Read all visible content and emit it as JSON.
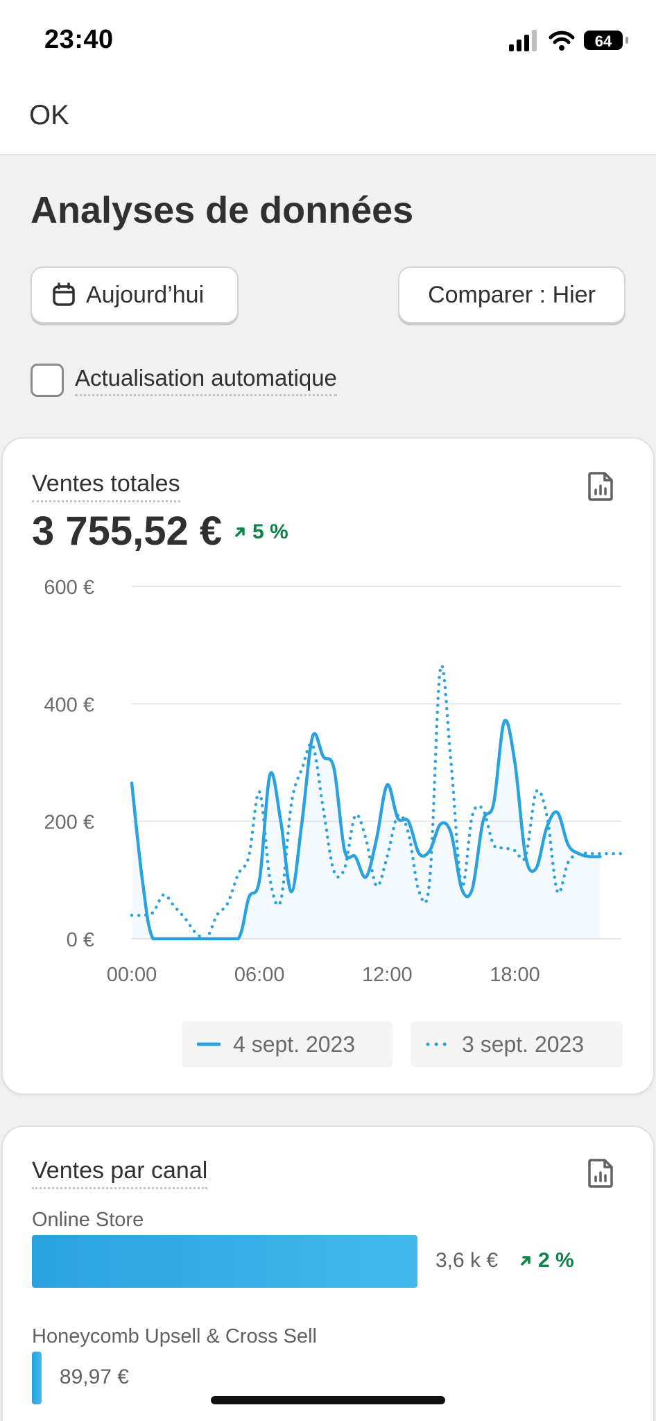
{
  "status_bar": {
    "time": "23:40",
    "battery": "64"
  },
  "nav": {
    "ok_label": "OK"
  },
  "page": {
    "title": "Analyses de données"
  },
  "controls": {
    "date_label": "Aujourd’hui",
    "compare_label": "Comparer : Hier",
    "auto_refresh_label": "Actualisation automatique",
    "auto_refresh_checked": false
  },
  "sales_card": {
    "title": "Ventes totales",
    "total": "3 755,52 €",
    "growth": "5 %",
    "accent_color": "#2aa2df",
    "growth_color": "#0c8346",
    "legend": [
      "4 sept. 2023",
      "3 sept. 2023"
    ]
  },
  "chart_data": {
    "type": "line",
    "xlabel": "",
    "ylabel": "",
    "x_ticks": [
      "00:00",
      "06:00",
      "12:00",
      "18:00"
    ],
    "y_ticks": [
      "0 €",
      "200 €",
      "400 €",
      "600 €"
    ],
    "ylim": [
      0,
      600
    ],
    "xlim": [
      0,
      23
    ],
    "grid": true,
    "legend_position": "bottom",
    "series": [
      {
        "name": "4 sept. 2023",
        "style": "solid",
        "x": [
          0,
          0.5,
          1,
          2,
          3,
          4,
          5,
          5.5,
          6,
          6.5,
          7,
          7.5,
          8,
          8.5,
          9,
          9.5,
          10,
          10.5,
          11,
          11.5,
          12,
          12.5,
          13,
          13.5,
          14,
          14.5,
          15,
          15.5,
          16,
          16.5,
          17,
          17.5,
          18,
          18.5,
          19,
          19.5,
          20,
          20.5,
          21,
          21.5,
          22
        ],
        "values": [
          265,
          100,
          0,
          0,
          0,
          0,
          0,
          70,
          100,
          280,
          200,
          80,
          200,
          345,
          310,
          290,
          150,
          140,
          105,
          170,
          262,
          205,
          200,
          145,
          150,
          195,
          180,
          85,
          85,
          200,
          230,
          370,
          300,
          140,
          120,
          190,
          215,
          160,
          145,
          140,
          140
        ]
      },
      {
        "name": "3 sept. 2023",
        "style": "dotted",
        "x": [
          0,
          0.5,
          1,
          1.5,
          2,
          2.5,
          3,
          3.5,
          4,
          4.5,
          5,
          5.5,
          6,
          6.5,
          7,
          7.5,
          8,
          8.5,
          9,
          9.5,
          10,
          10.5,
          11,
          11.5,
          12,
          12.5,
          13,
          13.5,
          14,
          14.5,
          15,
          15.5,
          16,
          16.5,
          17,
          17.5,
          18,
          18.5,
          19,
          19.5,
          20,
          20.5,
          21,
          21.5,
          22,
          22.5,
          23
        ],
        "values": [
          40,
          40,
          45,
          75,
          55,
          35,
          10,
          0,
          40,
          60,
          110,
          140,
          250,
          100,
          65,
          230,
          290,
          330,
          220,
          115,
          120,
          210,
          170,
          90,
          140,
          210,
          180,
          80,
          100,
          460,
          300,
          90,
          210,
          220,
          160,
          155,
          150,
          140,
          250,
          210,
          80,
          130,
          145,
          145,
          145,
          145,
          145
        ]
      }
    ]
  },
  "channel_card": {
    "title": "Ventes par canal",
    "channels": [
      {
        "name": "Online Store",
        "value": "3,6 k €",
        "growth": "2 %",
        "amount": 3600
      },
      {
        "name": "Honeycomb Upsell & Cross Sell",
        "value": "89,97 €",
        "amount": 89.97
      }
    ]
  }
}
